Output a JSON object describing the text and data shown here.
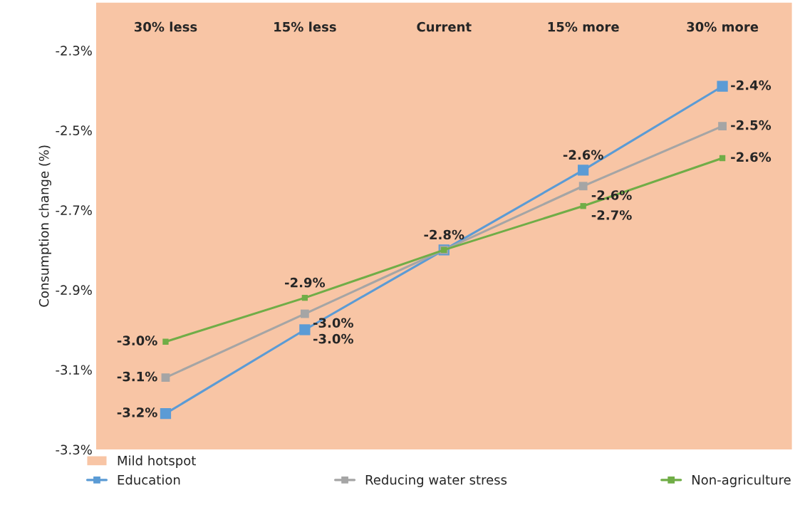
{
  "chart_data": {
    "type": "line",
    "ylabel": "Consumption change (%)",
    "categories": [
      "30% less",
      "15% less",
      "Current",
      "15% more",
      "30% more"
    ],
    "series": [
      {
        "name": "Education",
        "color": "#5b9bd5",
        "values": [
          -3.21,
          -3.0,
          -2.8,
          -2.6,
          -2.39
        ],
        "value_labels": [
          "-3.2%",
          "-3.0%",
          null,
          "-2.6%",
          "-2.4%"
        ]
      },
      {
        "name": "Reducing water stress",
        "color": "#a5a5a5",
        "values": [
          -3.12,
          -2.96,
          -2.8,
          -2.64,
          -2.49
        ],
        "value_labels": [
          "-3.1%",
          "-3.0%",
          null,
          "-2.6%",
          "-2.5%"
        ]
      },
      {
        "name": "Non-agriculture",
        "color": "#70ad47",
        "values": [
          -3.03,
          -2.92,
          -2.8,
          -2.69,
          -2.57
        ],
        "value_labels": [
          "-3.0%",
          "-2.9%",
          "-2.8%",
          "-2.7%",
          "-2.6%"
        ]
      }
    ],
    "ylim": [
      -3.3,
      -2.18
    ],
    "yticks": [
      {
        "value": -3.3,
        "label": "-3.3%"
      },
      {
        "value": -3.1,
        "label": "-3.1%"
      },
      {
        "value": -2.9,
        "label": "-2.9%"
      },
      {
        "value": -2.7,
        "label": "-2.7%"
      },
      {
        "value": -2.5,
        "label": "-2.5%"
      },
      {
        "value": -2.3,
        "label": "-2.3%"
      }
    ],
    "bands": [
      {
        "axis": "y",
        "from": -3.3,
        "to": -2.18,
        "label": "Mild hotspot",
        "color": "#f8c5a5"
      }
    ],
    "marker": "square",
    "line_style": "solid",
    "grid": false,
    "legend": "bottom"
  }
}
